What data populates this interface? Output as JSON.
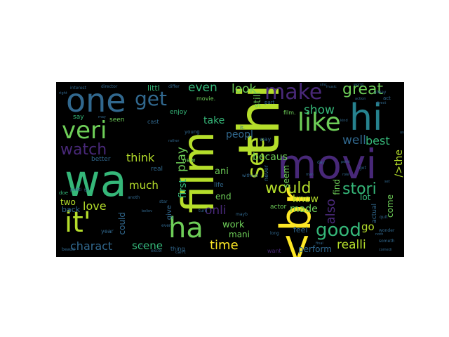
{
  "colors": {
    "background": "#000000",
    "page": "#ffffff",
    "palette": [
      "#fde725",
      "#b5de2b",
      "#6ece58",
      "#35b779",
      "#1f9e89",
      "#26828e",
      "#31688e",
      "#3e4989",
      "#482878",
      "#440154"
    ]
  },
  "words": {
    "w1": "thi",
    "w2": "film",
    "w3": "wa",
    "w4": "movi",
    "w5": "/><br",
    "w6": "hi",
    "w7": "one",
    "w8": "ha",
    "w9": "it'",
    "w10": "veri",
    "w11": "like",
    "w12": "make",
    "w13": "get",
    "w14": "good",
    "w15": "watch",
    "w16": "great",
    "w17": "see",
    "w18": "stori",
    "w19": "would",
    "w20": "realli",
    "w21": "time",
    "w22": "charact",
    "w23": "even",
    "w24": "look",
    "w25": "show",
    "w26": "well",
    "w27": "think",
    "w28": "much",
    "w29": "love",
    "w30": "scene",
    "w31": "onli",
    "w32": "play",
    "w33": "first",
    "w34": "also",
    "w35": "becaus",
    "w36": "best",
    "w37": "know",
    "w38": "go",
    "w39": "peopl",
    "w40": "end",
    "w41": "take",
    "w42": "still",
    "w43": "made",
    "w44": "find",
    "w45": "/>the",
    "w46": "come",
    "w47": "lot",
    "w48": "work",
    "w49": "mani",
    "w50": "feel",
    "w51": "perform",
    "w52": "two",
    "w53": "back",
    "w54": "could",
    "w55": "seem",
    "w56": "ani",
    "w57": "new",
    "w58": "life",
    "w59": "actor",
    "w60": "littl",
    "w61": "cast",
    "w62": "enjoy",
    "w63": "seen",
    "w64": "say",
    "w65": "better",
    "w66": "real",
    "w67": "year",
    "w68": "thing",
    "w69": "want",
    "w70": "actual",
    "w71": "give",
    "w72": "director",
    "w73": "interest",
    "w74": "differ",
    "w75": "movie.",
    "w76": "film.",
    "w77": "way",
    "w78": "part",
    "w79": "tri",
    "w80": "act",
    "w81": "quit",
    "w82": "never",
    "w83": "someth",
    "w84": "wonder",
    "w85": "beauti",
    "w86": "doe",
    "w87": "pretti",
    "w88": "young",
    "w89": "turn",
    "w90": "star",
    "w91": "alway",
    "w92": "music",
    "w93": "world",
    "w94": "got",
    "w95": "day",
    "w96": "mayb",
    "w97": "excel",
    "w98": "can't",
    "w99": "anoth",
    "w100": "believ",
    "w101": "long",
    "w102": "without",
    "w103": "kind",
    "w104": "point",
    "w105": "it.",
    "w106": "action",
    "w107": "comedi",
    "w108": "final",
    "w109": "man",
    "w110": "set",
    "w111": "ever",
    "w112": "rather",
    "w113": "may",
    "w114": "i'v",
    "w115": "sinc",
    "w116": "role",
    "w117": "direct",
    "w118": "noth",
    "w119": "right",
    "w120": "us"
  }
}
